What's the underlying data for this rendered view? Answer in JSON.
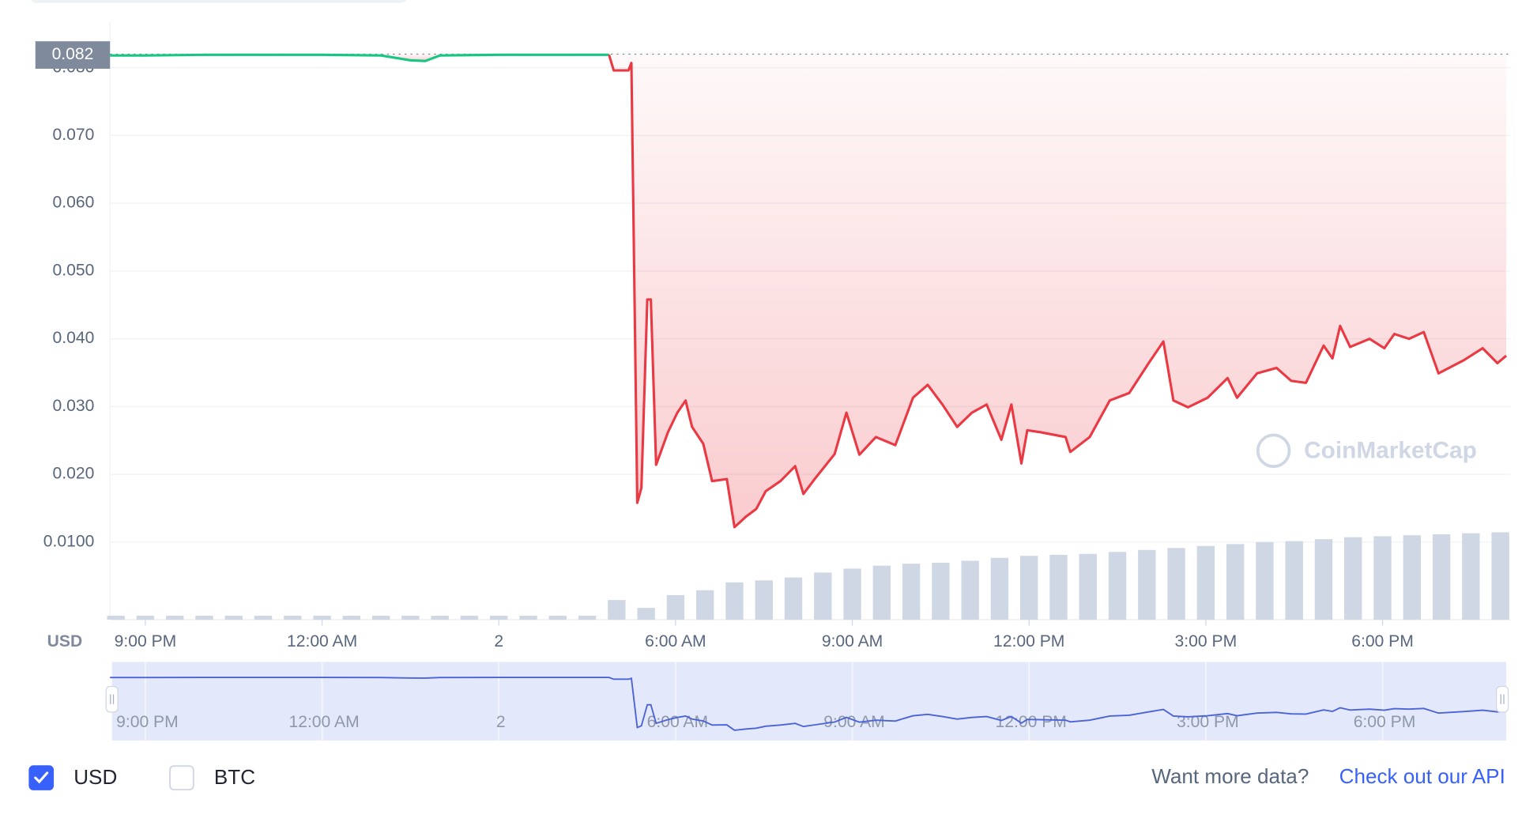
{
  "chart_data": {
    "type": "line",
    "currency_label": "USD",
    "watermark": "CoinMarketCap",
    "xlim": [
      20.4,
      44.1
    ],
    "xticks": [
      {
        "value": 21,
        "label": "9:00 PM"
      },
      {
        "value": 24,
        "label": "12:00 AM"
      },
      {
        "value": 27,
        "label": "2"
      },
      {
        "value": 30,
        "label": "6:00 AM"
      },
      {
        "value": 33,
        "label": "9:00 AM"
      },
      {
        "value": 36,
        "label": "12:00 PM"
      },
      {
        "value": 39,
        "label": "3:00 PM"
      },
      {
        "value": 42,
        "label": "6:00 PM"
      }
    ],
    "ylim": [
      0,
      0.0855
    ],
    "yticks": [
      {
        "value": 0.01,
        "label": "0.0100"
      },
      {
        "value": 0.02,
        "label": "0.020"
      },
      {
        "value": 0.03,
        "label": "0.030"
      },
      {
        "value": 0.04,
        "label": "0.040"
      },
      {
        "value": 0.05,
        "label": "0.050"
      },
      {
        "value": 0.06,
        "label": "0.060"
      },
      {
        "value": 0.07,
        "label": "0.070"
      },
      {
        "value": 0.08,
        "label": "0.080"
      }
    ],
    "grid": true,
    "open_price": {
      "value": 0.082,
      "label": "0.082"
    },
    "series": [
      {
        "color": "#16c784",
        "x": [
          20.4,
          21,
          22,
          23,
          24,
          25,
          25.5,
          25.75,
          26,
          27,
          28,
          28.87
        ],
        "values": [
          0.0818,
          0.0818,
          0.0819,
          0.0819,
          0.0819,
          0.0818,
          0.0811,
          0.081,
          0.0818,
          0.0819,
          0.0819,
          0.0819
        ]
      },
      {
        "color": "#ea3943",
        "x": [
          28.87,
          28.95,
          29.2,
          29.25,
          29.35,
          29.42,
          29.52,
          29.58,
          29.67,
          29.87,
          30.03,
          30.17,
          30.28,
          30.47,
          30.62,
          30.87,
          31,
          31.2,
          31.37,
          31.53,
          31.78,
          32.03,
          32.17,
          32.37,
          32.7,
          32.9,
          33.12,
          33.4,
          33.73,
          34.03,
          34.28,
          34.53,
          34.78,
          35.03,
          35.28,
          35.53,
          35.7,
          35.87,
          35.97,
          36.2,
          36.62,
          36.7,
          37.03,
          37.37,
          37.7,
          38.03,
          38.28,
          38.45,
          38.7,
          39.03,
          39.37,
          39.53,
          39.87,
          40.2,
          40.45,
          40.7,
          41,
          41.15,
          41.28,
          41.45,
          41.78,
          42.03,
          42.2,
          42.45,
          42.7,
          42.95,
          43.37,
          43.7,
          43.95,
          44.1
        ],
        "values": [
          0.0819,
          0.0796,
          0.0796,
          0.0807,
          0.0158,
          0.018,
          0.0458,
          0.0458,
          0.0214,
          0.0262,
          0.0291,
          0.0309,
          0.027,
          0.0245,
          0.019,
          0.0193,
          0.0122,
          0.0138,
          0.0149,
          0.0175,
          0.019,
          0.0212,
          0.0171,
          0.0194,
          0.023,
          0.0291,
          0.0229,
          0.0255,
          0.0243,
          0.0313,
          0.0332,
          0.0303,
          0.027,
          0.0291,
          0.0303,
          0.0251,
          0.0303,
          0.0216,
          0.0265,
          0.0262,
          0.0255,
          0.0233,
          0.0255,
          0.0309,
          0.032,
          0.0364,
          0.0396,
          0.0309,
          0.0299,
          0.0313,
          0.0342,
          0.0313,
          0.0349,
          0.0357,
          0.0338,
          0.0335,
          0.039,
          0.0371,
          0.0419,
          0.0388,
          0.04,
          0.0386,
          0.0407,
          0.04,
          0.041,
          0.0349,
          0.0368,
          0.0386,
          0.0364,
          0.0375
        ]
      }
    ],
    "volume": {
      "color": "#cfd6e4",
      "ylim": [
        0,
        100
      ],
      "x": [
        20.5,
        21,
        21.5,
        22,
        22.5,
        23,
        23.5,
        24,
        24.5,
        25,
        25.5,
        26,
        26.5,
        27,
        27.5,
        28,
        28.5,
        29,
        29.5,
        30,
        30.5,
        31,
        31.5,
        32,
        32.5,
        33,
        33.5,
        34,
        34.5,
        35,
        35.5,
        36,
        36.5,
        37,
        37.5,
        38,
        38.5,
        39,
        39.5,
        40,
        40.5,
        41,
        41.5,
        42,
        42.5,
        43,
        43.5,
        44
      ],
      "values": [
        4,
        4,
        4,
        4,
        4,
        4,
        4,
        4,
        4,
        4,
        4,
        4,
        4,
        4,
        4,
        4,
        4,
        20,
        12,
        25,
        30,
        38,
        40,
        43,
        48,
        52,
        55,
        57,
        58,
        60,
        63,
        65,
        66,
        67,
        69,
        71,
        73,
        75,
        77,
        79,
        80,
        82,
        84,
        85,
        86,
        87,
        88,
        89
      ]
    },
    "navigator_color": "#4a63d8",
    "options": [
      {
        "label": "USD",
        "checked": true
      },
      {
        "label": "BTC",
        "checked": false
      }
    ],
    "footer": {
      "text": "Want more data?",
      "link": "Check out our API"
    }
  }
}
